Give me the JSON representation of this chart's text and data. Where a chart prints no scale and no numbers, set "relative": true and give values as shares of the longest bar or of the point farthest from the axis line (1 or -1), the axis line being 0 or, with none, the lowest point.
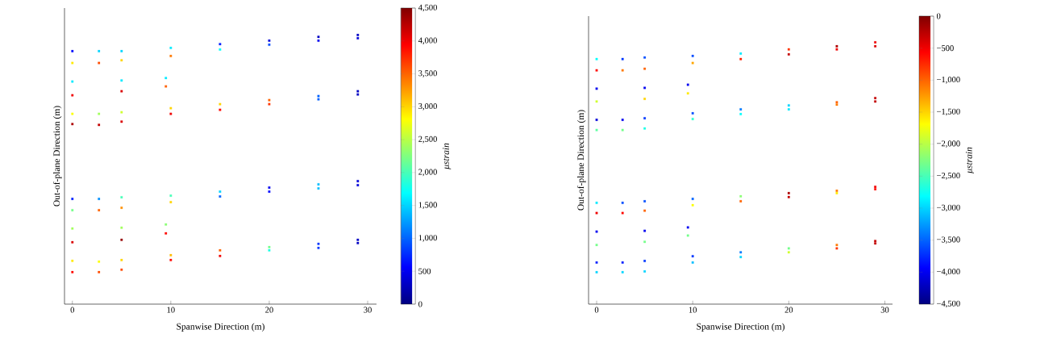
{
  "chart_data": [
    {
      "type": "scatter",
      "xlabel": "Spanwise Direction (m)",
      "ylabel": "Out-of-plane Direction (m)",
      "clabel": "μstrain",
      "relative": true,
      "marker": "square",
      "xlim": [
        -0.8,
        30.9
      ],
      "xticks": [
        0,
        10,
        20,
        30
      ],
      "clim": [
        0,
        4500
      ],
      "cticks": [
        0,
        500,
        {
          "value": 1000,
          "label": "1,000"
        },
        {
          "value": 1500,
          "label": "1,500"
        },
        {
          "value": 2000,
          "label": "2,000"
        },
        {
          "value": 2500,
          "label": "2,500"
        },
        {
          "value": 3000,
          "label": "3,000"
        },
        {
          "value": 3500,
          "label": "3,500"
        },
        {
          "value": 4000,
          "label": "4,000"
        },
        {
          "value": 4500,
          "label": "4,500"
        }
      ],
      "series": [
        {
          "x": [
            0,
            2.7,
            5,
            10,
            15,
            20,
            25,
            29,
            0,
            2.7,
            5,
            10,
            15,
            20,
            25,
            29
          ],
          "values": [
            0.94,
            0.94,
            0.94,
            0.952,
            0.966,
            0.979,
            0.993,
            1.0,
            0.896,
            0.896,
            0.906,
            0.922,
            0.946,
            0.964,
            0.979,
            0.988
          ],
          "cvalues": [
            600,
            1500,
            1500,
            1600,
            700,
            400,
            300,
            300,
            2900,
            3600,
            3000,
            3400,
            1700,
            900,
            500,
            400
          ],
          "colors": [
            "#0009ff",
            "#00d5ff",
            "#00d5ff",
            "#00ebff",
            "#001fff",
            "#0000da",
            "#0000c4",
            "#0000c4",
            "#ffeb00",
            "#ff4c00",
            "#ffd500",
            "#ff7a00",
            "#03fffc",
            "#004dff",
            "#0000f1",
            "#0000da"
          ]
        },
        {
          "x": [
            0,
            5,
            9.5,
            0,
            5,
            9.5
          ],
          "values": [
            0.827,
            0.831,
            0.84,
            0.776,
            0.791,
            0.809
          ],
          "cvalues": [
            1600,
            1600,
            1600,
            4000,
            4100,
            3500
          ],
          "colors": [
            "#00ebff",
            "#00ebff",
            "#00ebff",
            "#f10000",
            "#da0000",
            "#ff6300"
          ]
        },
        {
          "x": [
            0,
            2.7,
            5,
            10,
            15,
            20,
            25,
            29,
            0,
            2.7,
            5,
            10,
            15,
            20,
            25,
            29
          ],
          "values": [
            0.707,
            0.707,
            0.713,
            0.728,
            0.743,
            0.758,
            0.773,
            0.791,
            0.669,
            0.666,
            0.678,
            0.707,
            0.722,
            0.743,
            0.761,
            0.779
          ],
          "cvalues": [
            2800,
            2400,
            2600,
            3000,
            3000,
            3500,
            1000,
            300,
            4300,
            4200,
            4100,
            4000,
            3900,
            3700,
            1000,
            300
          ],
          "colors": [
            "#fcff03",
            "#a1ff5e",
            "#cfff30",
            "#ffd500",
            "#ffd500",
            "#ff6300",
            "#0063ff",
            "#0000c4",
            "#ad0000",
            "#c40000",
            "#da0000",
            "#f10000",
            "#ff0800",
            "#ff3600",
            "#0063ff",
            "#0000c4"
          ]
        },
        {
          "x": [
            0,
            2.7,
            5,
            10,
            15,
            20,
            25,
            29,
            0,
            2.7,
            5,
            10,
            15,
            20,
            25,
            29
          ],
          "values": [
            0.391,
            0.391,
            0.397,
            0.403,
            0.418,
            0.433,
            0.445,
            0.457,
            0.349,
            0.349,
            0.358,
            0.379,
            0.4,
            0.418,
            0.43,
            0.442
          ],
          "cvalues": [
            700,
            1200,
            2000,
            2000,
            1500,
            500,
            1400,
            400,
            2200,
            3500,
            3300,
            3000,
            1000,
            600,
            1400,
            400
          ],
          "colors": [
            "#001fff",
            "#0091ff",
            "#47ffb8",
            "#47ffb8",
            "#00d5ff",
            "#0000f1",
            "#00beff",
            "#0000da",
            "#74ff8b",
            "#ff6300",
            "#ff9000",
            "#ffd500",
            "#0063ff",
            "#0009ff",
            "#00beff",
            "#0000da"
          ]
        },
        {
          "x": [
            0,
            5,
            9.5,
            0,
            5,
            9.5
          ],
          "values": [
            0.281,
            0.284,
            0.296,
            0.23,
            0.239,
            0.263
          ],
          "cvalues": [
            2400,
            2400,
            2300,
            4100,
            4400,
            3900
          ],
          "colors": [
            "#a1ff5e",
            "#a1ff5e",
            "#8bff74",
            "#da0000",
            "#970000",
            "#ff0800"
          ]
        },
        {
          "x": [
            0,
            2.7,
            5,
            10,
            15,
            20,
            25,
            29,
            0,
            2.7,
            5,
            10,
            15,
            20,
            25,
            29
          ],
          "values": [
            0.161,
            0.158,
            0.164,
            0.182,
            0.2,
            0.212,
            0.224,
            0.239,
            0.119,
            0.119,
            0.128,
            0.164,
            0.179,
            0.2,
            0.209,
            0.227
          ],
          "cvalues": [
            2900,
            2800,
            3000,
            3100,
            3500,
            2200,
            800,
            300,
            3900,
            3600,
            3600,
            3900,
            4000,
            1800,
            800,
            300
          ],
          "colors": [
            "#ffeb00",
            "#fcff03",
            "#ffd500",
            "#ffbe00",
            "#ff6300",
            "#74ff8b",
            "#0036ff",
            "#0000c4",
            "#ff0800",
            "#ff4c00",
            "#ff4c00",
            "#ff0800",
            "#f10000",
            "#1affe5",
            "#0036ff",
            "#0000c4"
          ]
        }
      ]
    },
    {
      "type": "scatter",
      "xlabel": "Spanwise Direction (m)",
      "ylabel": "Out-of-plane Direction (m)",
      "clabel": "μstrain",
      "relative": true,
      "marker": "square",
      "xlim": [
        -0.84,
        30.8
      ],
      "xticks": [
        0,
        10,
        20,
        30
      ],
      "clim": [
        -4500,
        0
      ],
      "cticks": [
        {
          "value": -4500,
          "label": "−4,500"
        },
        {
          "value": -4000,
          "label": "−4,000"
        },
        {
          "value": -3500,
          "label": "−3,500"
        },
        {
          "value": -3000,
          "label": "−3,000"
        },
        {
          "value": -2500,
          "label": "−2,500"
        },
        {
          "value": -2000,
          "label": "−2,000"
        },
        {
          "value": -1500,
          "label": "−1,500"
        },
        {
          "value": -1000,
          "label": "−1,000"
        },
        {
          "value": -500,
          "label": "−500"
        },
        0
      ],
      "series": [
        {
          "x": [
            0,
            2.7,
            5,
            10,
            15,
            20,
            25,
            29,
            0,
            2.7,
            5,
            10,
            15,
            20,
            25,
            29
          ],
          "values": [
            0.936,
            0.936,
            0.942,
            0.948,
            0.957,
            0.973,
            0.985,
            1.0,
            0.893,
            0.893,
            0.899,
            0.921,
            0.936,
            0.954,
            0.973,
            0.985
          ],
          "cvalues": [
            -2800,
            -3700,
            -3600,
            -3600,
            -2900,
            -800,
            -200,
            -500,
            -600,
            -1100,
            -1000,
            -1300,
            -700,
            -300,
            -500,
            -400
          ],
          "colors": [
            "#03fffc",
            "#0036ff",
            "#004dff",
            "#004dff",
            "#00ebff",
            "#ff3600",
            "#ad0000",
            "#f10000",
            "#ff0800",
            "#ff7a00",
            "#ff6300",
            "#ffa700",
            "#ff1f00",
            "#c40000",
            "#f10000",
            "#da0000"
          ]
        },
        {
          "x": [
            0,
            5,
            9.5,
            0,
            5,
            9.5
          ],
          "values": [
            0.823,
            0.826,
            0.838,
            0.774,
            0.784,
            0.805
          ],
          "cvalues": [
            -4000,
            -4000,
            -4000,
            -1900,
            -1500,
            -1600
          ],
          "colors": [
            "#0000f1",
            "#0000f1",
            "#0000f1",
            "#cfff30",
            "#ffd500",
            "#ffeb00"
          ]
        },
        {
          "x": [
            0,
            2.7,
            5,
            10,
            15,
            20,
            25,
            29,
            0,
            2.7,
            5,
            10,
            15,
            20,
            25,
            29
          ],
          "values": [
            0.704,
            0.704,
            0.71,
            0.729,
            0.744,
            0.759,
            0.771,
            0.787,
            0.665,
            0.665,
            0.671,
            0.707,
            0.726,
            0.744,
            0.762,
            0.774
          ],
          "cvalues": [
            -4100,
            -4000,
            -3700,
            -3600,
            -3400,
            -3000,
            -1000,
            -300,
            -2400,
            -2300,
            -2700,
            -2600,
            -2800,
            -2900,
            -1100,
            -300
          ],
          "colors": [
            "#0000da",
            "#0000f1",
            "#0036ff",
            "#004dff",
            "#007aff",
            "#00d5ff",
            "#ff6300",
            "#c40000",
            "#5effa1",
            "#74ff8b",
            "#1affe5",
            "#30ffcf",
            "#03fffc",
            "#00ebff",
            "#ff7a00",
            "#c40000"
          ]
        },
        {
          "x": [
            0,
            2.7,
            5,
            10,
            15,
            20,
            25,
            29,
            0,
            2.7,
            5,
            10,
            15,
            20,
            25,
            29
          ],
          "values": [
            0.387,
            0.387,
            0.393,
            0.402,
            0.412,
            0.424,
            0.433,
            0.448,
            0.348,
            0.348,
            0.357,
            0.378,
            0.393,
            0.409,
            0.424,
            0.439
          ],
          "cvalues": [
            -2900,
            -3600,
            -3600,
            -3500,
            -2200,
            -200,
            -1100,
            -500,
            -500,
            -600,
            -1000,
            -1700,
            -1000,
            -300,
            -1600,
            -600
          ],
          "colors": [
            "#00ebff",
            "#004dff",
            "#004dff",
            "#0063ff",
            "#8bff74",
            "#ad0000",
            "#ff7a00",
            "#f10000",
            "#f10000",
            "#ff0800",
            "#ff6300",
            "#fcff03",
            "#ff6300",
            "#c40000",
            "#ffeb00",
            "#ff0800"
          ]
        },
        {
          "x": [
            0,
            5,
            9.5,
            0,
            5,
            9.5
          ],
          "values": [
            0.277,
            0.28,
            0.293,
            0.226,
            0.238,
            0.262
          ],
          "cvalues": [
            -4000,
            -4000,
            -4000,
            -2300,
            -2300,
            -2300
          ],
          "colors": [
            "#0000f1",
            "#0000f1",
            "#0000f1",
            "#74ff8b",
            "#74ff8b",
            "#74ff8b"
          ]
        },
        {
          "x": [
            0,
            2.7,
            5,
            10,
            15,
            20,
            25,
            29,
            0,
            2.7,
            5,
            10,
            15,
            20,
            25,
            29
          ],
          "values": [
            0.159,
            0.159,
            0.165,
            0.183,
            0.198,
            0.213,
            0.226,
            0.241,
            0.122,
            0.122,
            0.125,
            0.159,
            0.18,
            0.198,
            0.213,
            0.232
          ],
          "cvalues": [
            -3800,
            -3800,
            -3700,
            -3700,
            -3400,
            -2300,
            -1100,
            -300,
            -3000,
            -3000,
            -3000,
            -3100,
            -3000,
            -1900,
            -800,
            -300
          ],
          "colors": [
            "#001fff",
            "#001fff",
            "#0036ff",
            "#0036ff",
            "#007aff",
            "#74ff8b",
            "#ff7a00",
            "#c40000",
            "#00d5ff",
            "#00d5ff",
            "#00d5ff",
            "#00beff",
            "#00d5ff",
            "#cfff30",
            "#ff3600",
            "#c40000"
          ]
        }
      ]
    }
  ]
}
